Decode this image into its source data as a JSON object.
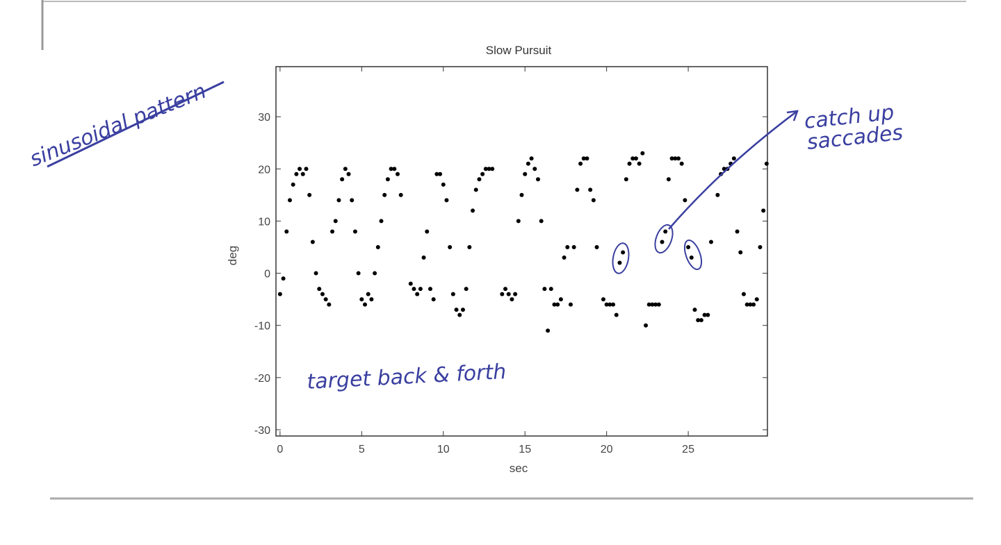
{
  "chart_data": {
    "type": "scatter",
    "title": "Slow Pursuit",
    "x_label": "sec",
    "y_label": "deg",
    "x": [
      0,
      0.2,
      0.4,
      0.6,
      0.8,
      1.0,
      1.2,
      1.4,
      1.6,
      1.8,
      2.0,
      2.2,
      2.4,
      2.6,
      2.8,
      3.0,
      3.2,
      3.4,
      3.6,
      3.8,
      4.0,
      4.2,
      4.4,
      4.6,
      4.8,
      5.0,
      5.2,
      5.4,
      5.6,
      5.8,
      6.0,
      6.2,
      6.4,
      6.6,
      6.8,
      7.0,
      7.2,
      7.4,
      8.0,
      8.2,
      8.4,
      8.6,
      8.8,
      9.0,
      9.2,
      9.4,
      9.6,
      9.8,
      10.0,
      10.2,
      10.4,
      10.6,
      10.8,
      11.0,
      11.2,
      11.4,
      11.6,
      11.8,
      12.0,
      12.2,
      12.4,
      12.6,
      12.8,
      13.0,
      13.6,
      13.8,
      14.0,
      14.2,
      14.4,
      14.6,
      14.8,
      15.0,
      15.2,
      15.4,
      15.6,
      15.8,
      16.0,
      16.2,
      16.4,
      16.6,
      16.8,
      17.0,
      17.2,
      17.4,
      17.6,
      17.8,
      18.0,
      18.2,
      18.4,
      18.6,
      18.8,
      19.0,
      19.2,
      19.4,
      19.8,
      20.0,
      20.2,
      20.4,
      20.6,
      20.8,
      21.0,
      21.2,
      21.4,
      21.6,
      21.8,
      22.0,
      22.2,
      22.4,
      22.6,
      22.8,
      23.0,
      23.2,
      23.4,
      23.6,
      23.8,
      24.0,
      24.2,
      24.4,
      24.6,
      24.8,
      25.0,
      25.2,
      25.4,
      25.6,
      25.8,
      26.0,
      26.2,
      26.4,
      26.8,
      27.0,
      27.2,
      27.4,
      27.6,
      27.8,
      28.0,
      28.2,
      28.4,
      28.6,
      28.8,
      29.0,
      29.2,
      29.4,
      29.6,
      29.8
    ],
    "values": [
      -4,
      -1,
      8,
      14,
      17,
      19,
      20,
      19,
      20,
      15,
      6,
      0,
      -3,
      -4,
      -5,
      -6,
      8,
      10,
      14,
      18,
      20,
      19,
      14,
      8,
      0,
      -5,
      -6,
      -4,
      -5,
      0,
      5,
      10,
      15,
      18,
      20,
      20,
      19,
      15,
      -2,
      -3,
      -4,
      -3,
      3,
      8,
      -3,
      -5,
      19,
      19,
      17,
      14,
      5,
      -4,
      -7,
      -8,
      -7,
      -3,
      5,
      12,
      16,
      18,
      19,
      20,
      20,
      20,
      -4,
      -3,
      -4,
      -5,
      -4,
      10,
      15,
      19,
      21,
      22,
      20,
      18,
      10,
      -3,
      -11,
      -3,
      -6,
      -6,
      -5,
      3,
      5,
      -6,
      5,
      16,
      21,
      22,
      22,
      16,
      14,
      5,
      -5,
      -6,
      -6,
      -6,
      -8,
      2,
      4,
      18,
      21,
      22,
      22,
      21,
      23,
      -10,
      -6,
      -6,
      -6,
      -6,
      6,
      8,
      18,
      22,
      22,
      22,
      21,
      14,
      5,
      3,
      -7,
      -9,
      -9,
      -8,
      -8,
      6,
      15,
      19,
      20,
      20,
      21,
      22,
      8,
      4,
      -4,
      -6,
      -6,
      -6,
      -5,
      5,
      12,
      21
    ],
    "color": "#000000",
    "xlim": [
      -0.25,
      29.85
    ],
    "ylim": [
      -31.2,
      39.6
    ],
    "xticks": [
      0,
      5,
      10,
      15,
      20,
      25
    ],
    "yticks": [
      -30,
      -20,
      -10,
      0,
      10,
      20,
      30
    ],
    "annotations": [
      "sinusoidal pattern",
      "catch up",
      "saccades",
      "target back & forth"
    ]
  }
}
